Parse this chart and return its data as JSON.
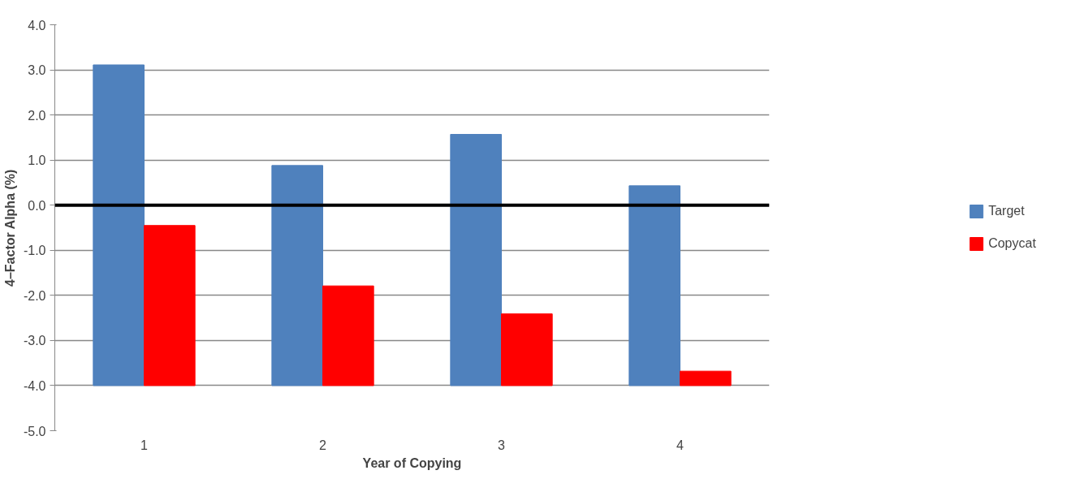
{
  "chart_data": {
    "type": "bar",
    "xlabel": "Year of Copying",
    "ylabel": "4–Factor Alpha (%)",
    "categories": [
      "1",
      "2",
      "3",
      "4"
    ],
    "series": [
      {
        "name": "Target",
        "color": "#4f81bd",
        "base": [
          -4,
          -4,
          -4,
          -4
        ],
        "values": [
          7.11,
          4.88,
          5.57,
          4.43
        ]
      },
      {
        "name": "Copycat",
        "color": "#ff0000",
        "base": [
          -4,
          -4,
          -4,
          -4
        ],
        "values": [
          3.55,
          2.21,
          1.59,
          0.32
        ]
      }
    ],
    "ylim": [
      -5,
      4
    ],
    "yticks": [
      {
        "value": -5,
        "label": "-5.0"
      },
      {
        "value": -4,
        "label": "-4.0"
      },
      {
        "value": -3,
        "label": "-3.0"
      },
      {
        "value": -2,
        "label": "-2.0"
      },
      {
        "value": -1,
        "label": "-1.0"
      },
      {
        "value": 0,
        "label": "0.0"
      },
      {
        "value": 1,
        "label": "1.0"
      },
      {
        "value": 2,
        "label": "2.0"
      },
      {
        "value": 3,
        "label": "3.0"
      },
      {
        "value": 4,
        "label": "4.0"
      }
    ],
    "ref_lines": [
      {
        "axis": "y",
        "value": 0,
        "label": null,
        "color": "#000000"
      }
    ],
    "grid": "y",
    "legend": "right"
  }
}
